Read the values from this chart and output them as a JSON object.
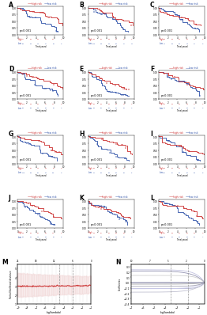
{
  "panels": [
    "A",
    "B",
    "C",
    "D",
    "E",
    "F",
    "G",
    "H",
    "I",
    "J",
    "K",
    "L",
    "M",
    "N"
  ],
  "bg_color": "#ffffff",
  "red_color": "#cc3333",
  "blue_color": "#3355aa",
  "pvalue_text": "p<0.001",
  "grid_color": "#cccccc",
  "ribbon_color": "#f2d8d8",
  "lasso_m_xlabel": "log(lambda)",
  "lasso_n_xlabel": "log(lambda)",
  "lasso_m_ylabel": "Partial likelihood deviance",
  "lasso_n_ylabel": "Coefficients",
  "vline_color": "#999999",
  "n_curve_color": "#aaaacc"
}
